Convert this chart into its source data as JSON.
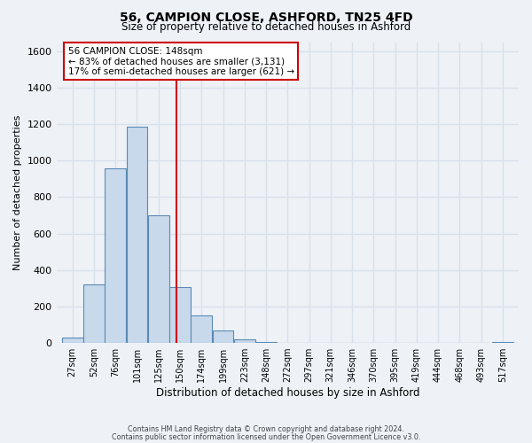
{
  "title": "56, CAMPION CLOSE, ASHFORD, TN25 4FD",
  "subtitle": "Size of property relative to detached houses in Ashford",
  "xlabel": "Distribution of detached houses by size in Ashford",
  "ylabel": "Number of detached properties",
  "footer_line1": "Contains HM Land Registry data © Crown copyright and database right 2024.",
  "footer_line2": "Contains public sector information licensed under the Open Government Licence v3.0.",
  "bar_labels": [
    "27sqm",
    "52sqm",
    "76sqm",
    "101sqm",
    "125sqm",
    "150sqm",
    "174sqm",
    "199sqm",
    "223sqm",
    "248sqm",
    "272sqm",
    "297sqm",
    "321sqm",
    "346sqm",
    "370sqm",
    "395sqm",
    "419sqm",
    "444sqm",
    "468sqm",
    "493sqm",
    "517sqm"
  ],
  "bar_values": [
    30,
    320,
    960,
    1185,
    700,
    305,
    150,
    70,
    20,
    5,
    2,
    1,
    1,
    0,
    0,
    0,
    0,
    0,
    0,
    0,
    5
  ],
  "bar_color": "#c8d9eb",
  "bar_edge_color": "#5a8ab5",
  "annotation_box_text": "56 CAMPION CLOSE: 148sqm\n← 83% of detached houses are smaller (3,131)\n17% of semi-detached houses are larger (621) →",
  "annotation_box_color": "#ffffff",
  "annotation_box_edge_color": "#cc0000",
  "vline_color": "#cc0000",
  "ylim": [
    0,
    1650
  ],
  "background_color": "#eef2f7",
  "grid_color": "#d8e0ea",
  "bin_width": 25,
  "vline_x": 148,
  "title_fontsize": 10,
  "subtitle_fontsize": 8.5,
  "ylabel_fontsize": 8,
  "xlabel_fontsize": 8.5,
  "tick_fontsize": 7,
  "annotation_fontsize": 7.5,
  "footer_fontsize": 5.8
}
